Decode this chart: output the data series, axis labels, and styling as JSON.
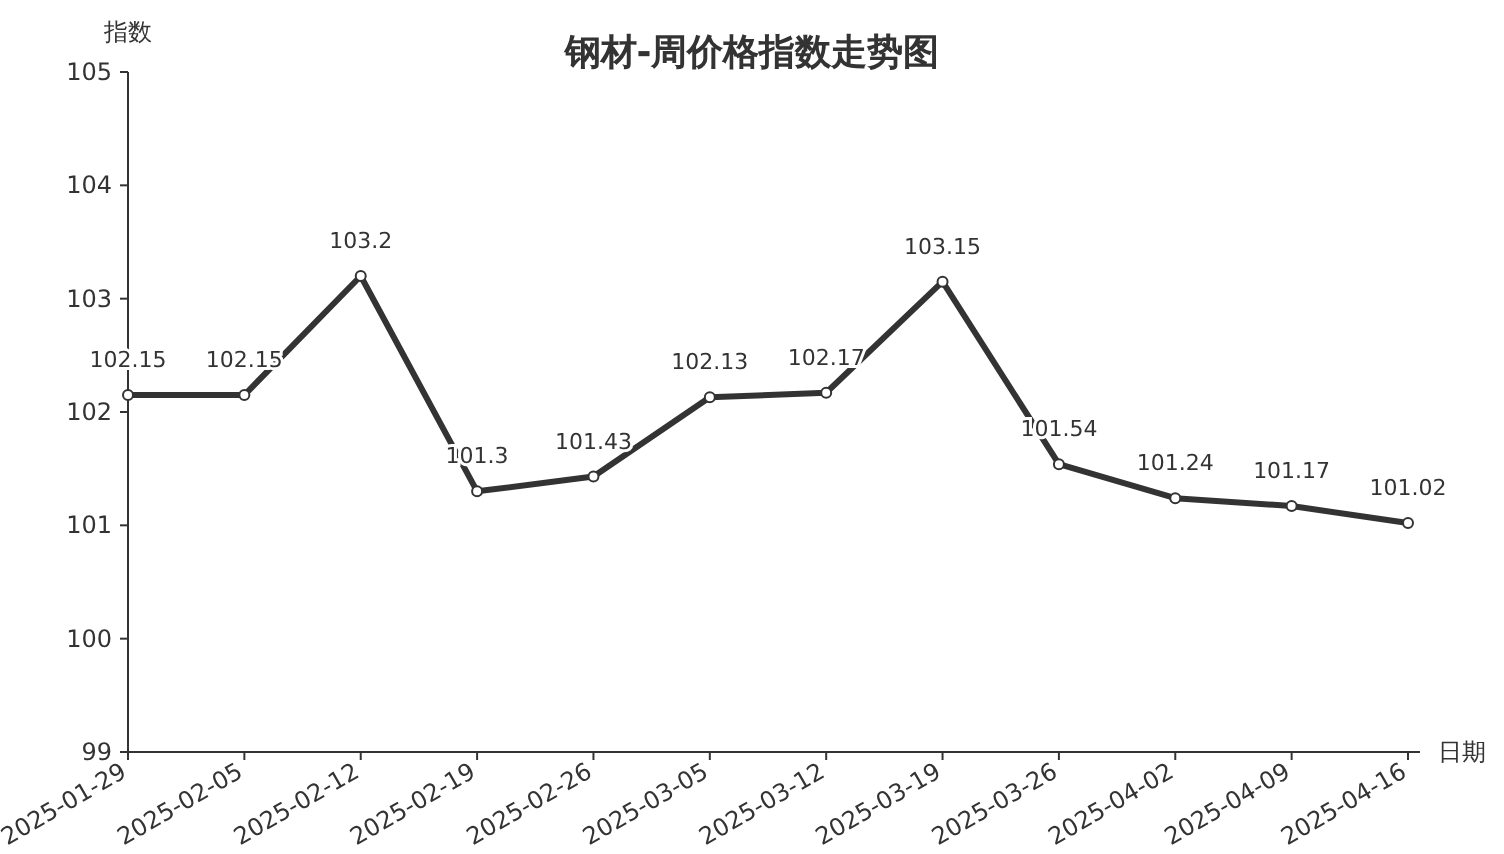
{
  "chart_data": {
    "type": "line",
    "title": "钢材-周价格指数走势图",
    "xlabel": "日期",
    "ylabel": "指数",
    "categories": [
      "2025-01-29",
      "2025-02-05",
      "2025-02-12",
      "2025-02-19",
      "2025-02-26",
      "2025-03-05",
      "2025-03-12",
      "2025-03-19",
      "2025-03-26",
      "2025-04-02",
      "2025-04-09",
      "2025-04-16"
    ],
    "series": [
      {
        "color": "#333333",
        "values": [
          102.15,
          102.15,
          103.2,
          101.3,
          101.43,
          102.13,
          102.17,
          103.15,
          101.54,
          101.24,
          101.17,
          101.02
        ]
      }
    ],
    "ylim": [
      99,
      105
    ],
    "yticks": [
      99,
      100,
      101,
      102,
      103,
      104,
      105
    ],
    "grid": false,
    "marker": "circle",
    "line_style": "solid",
    "data_labels": true
  }
}
